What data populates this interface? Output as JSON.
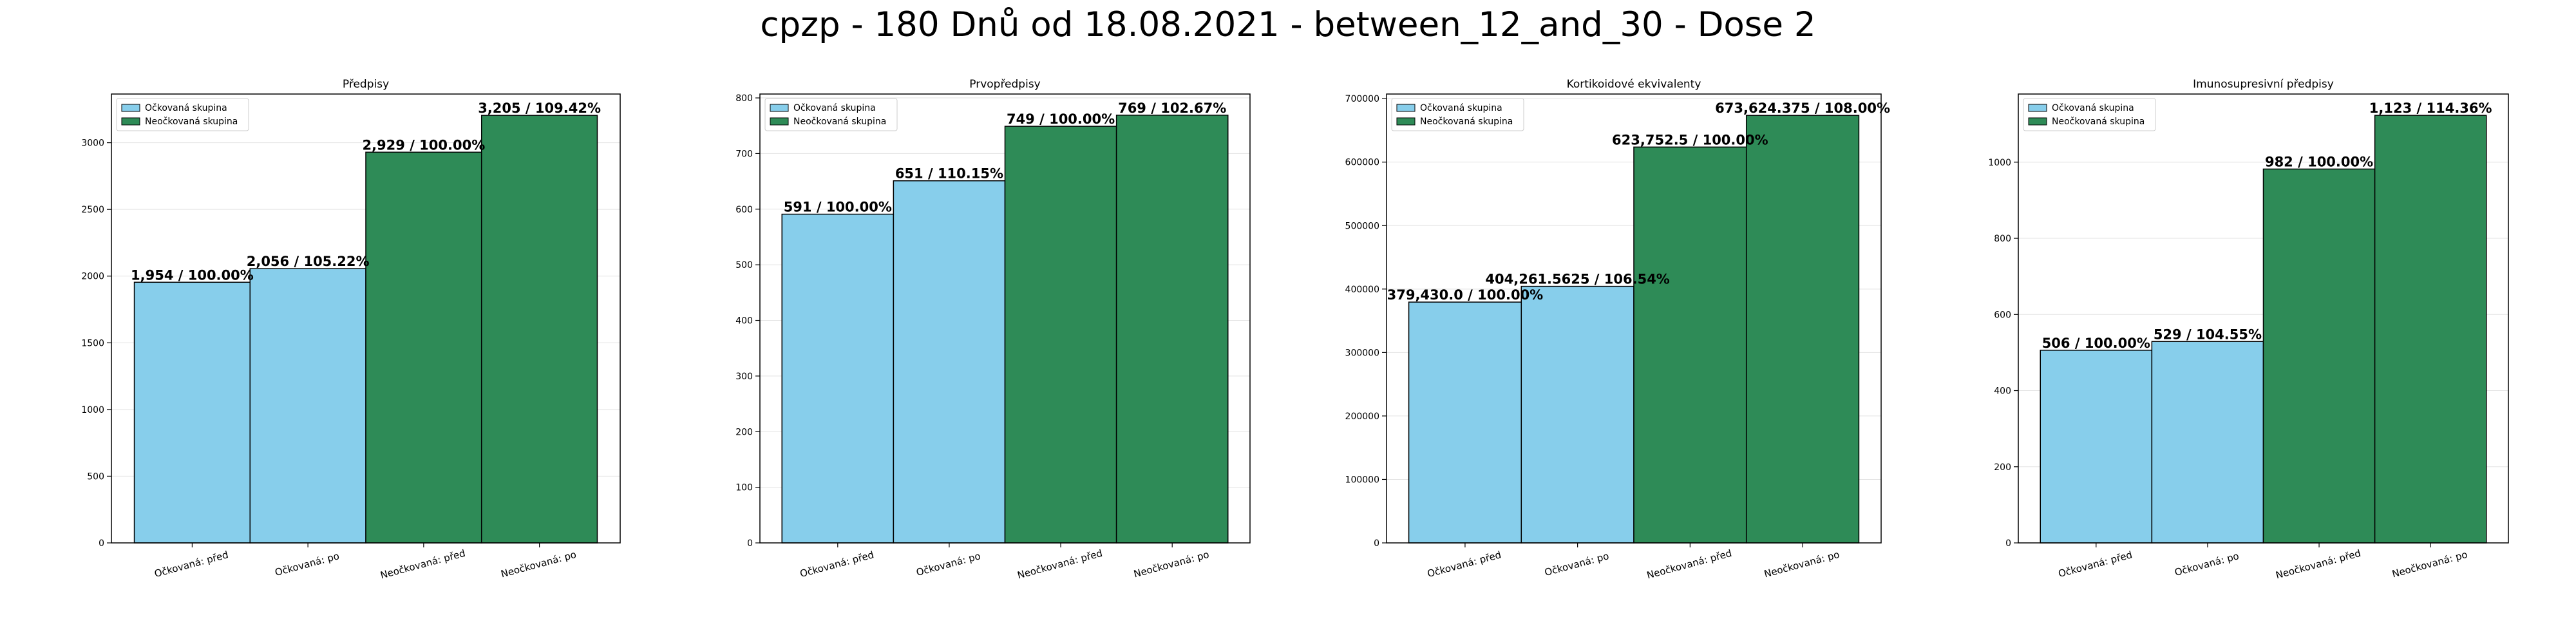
{
  "title": "cpzp - 180 Dnů od 18.08.2021 - between_12_and_30 - Dose 2",
  "legend": [
    "Očkovaná skupina",
    "Neočkovaná skupina"
  ],
  "colors": {
    "vaccinated": "#87ceeb",
    "unvaccinated": "#2e8b57",
    "edge": "#000000"
  },
  "chart_data": [
    {
      "type": "bar",
      "title": "Předpisy",
      "categories": [
        "Očkovaná: před",
        "Očkovaná: po",
        "Neočkovaná: před",
        "Neočkovaná: po"
      ],
      "values": [
        1954,
        2056,
        2929,
        3205
      ],
      "labels": [
        "1,954 / 100.00%",
        "2,056 / 105.22%",
        "2,929 / 100.00%",
        "3,205 / 109.42%"
      ],
      "ylim": [
        0,
        3365
      ],
      "yticks": [
        0,
        500,
        1000,
        1500,
        2000,
        2500,
        3000
      ],
      "legend_loc": "upper-left",
      "grid": true
    },
    {
      "type": "bar",
      "title": "Prvopředpisy",
      "categories": [
        "Očkovaná: před",
        "Očkovaná: po",
        "Neočkovaná: před",
        "Neočkovaná: po"
      ],
      "values": [
        591,
        651,
        749,
        769
      ],
      "labels": [
        "591 / 100.00%",
        "651 / 110.15%",
        "749 / 100.00%",
        "769 / 102.67%"
      ],
      "ylim": [
        0,
        807
      ],
      "yticks": [
        0,
        100,
        200,
        300,
        400,
        500,
        600,
        700,
        800
      ],
      "legend_loc": "upper-left",
      "grid": true
    },
    {
      "type": "bar",
      "title": "Kortikoidové ekvivalenty",
      "categories": [
        "Očkovaná: před",
        "Očkovaná: po",
        "Neočkovaná: před",
        "Neočkovaná: po"
      ],
      "values": [
        379430.0,
        404261.5625,
        623752.5,
        673624.375
      ],
      "labels": [
        "379,430.0 / 100.00%",
        "404,261.5625 / 106.54%",
        "623,752.5 / 100.00%",
        "673,624.375 / 108.00%"
      ],
      "ylim": [
        0,
        707300
      ],
      "yticks": [
        0,
        100000,
        200000,
        300000,
        400000,
        500000,
        600000,
        700000
      ],
      "legend_loc": "upper-left",
      "grid": true
    },
    {
      "type": "bar",
      "title": "Imunosupresivní předpisy",
      "categories": [
        "Očkovaná: před",
        "Očkovaná: po",
        "Neočkovaná: před",
        "Neočkovaná: po"
      ],
      "values": [
        506,
        529,
        982,
        1123
      ],
      "labels": [
        "506 / 100.00%",
        "529 / 104.55%",
        "982 / 100.00%",
        "1,123 / 114.36%"
      ],
      "ylim": [
        0,
        1179
      ],
      "yticks": [
        0,
        200,
        400,
        600,
        800,
        1000
      ],
      "legend_loc": "upper-left",
      "grid": true
    }
  ]
}
